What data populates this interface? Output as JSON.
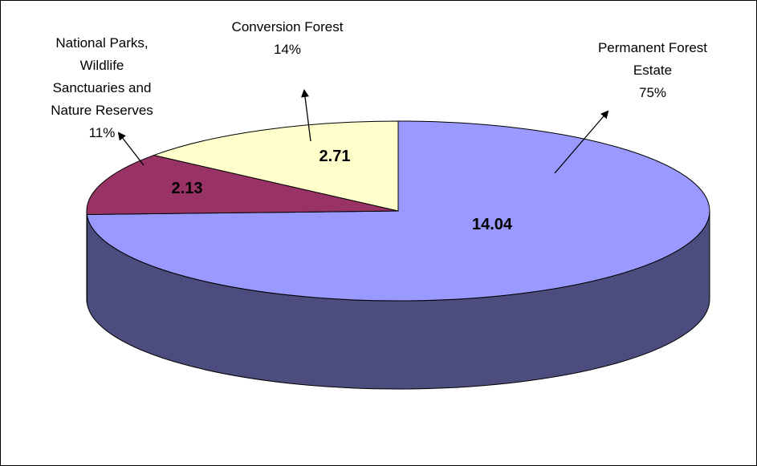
{
  "chart_data": {
    "type": "pie",
    "style": "3d-pie",
    "title": "",
    "slices": [
      {
        "name": "Permanent Forest Estate",
        "value": 14.04,
        "percent": "75%",
        "value_label": "14.04",
        "label_lines": [
          "Permanent Forest",
          "Estate",
          "75%"
        ],
        "color": "#9999ff",
        "side_color": "#4c4c7f"
      },
      {
        "name": "National Parks, Wildlife Sanctuaries and Nature Reserves",
        "value": 2.13,
        "percent": "11%",
        "value_label": "2.13",
        "label_lines": [
          "National Parks,",
          "Wildlife",
          "Sanctuaries and",
          "Nature Reserves",
          "11%"
        ],
        "color": "#993366",
        "side_color": "#4c1933"
      },
      {
        "name": "Conversion Forest",
        "value": 2.71,
        "percent": "14%",
        "value_label": "2.71",
        "label_lines": [
          "Conversion Forest",
          "14%"
        ],
        "color": "#ffffcc",
        "side_color": "#7f7f66"
      }
    ],
    "legend": "none",
    "data_labels": "values inside slices, category name and percent outside with arrows"
  }
}
